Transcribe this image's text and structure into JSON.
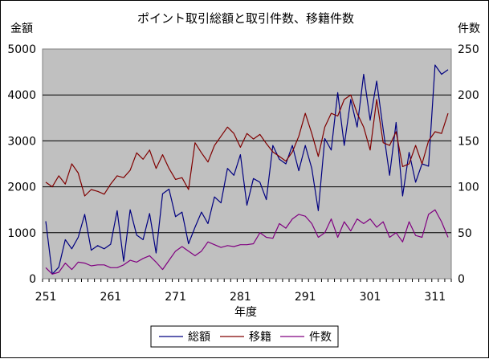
{
  "chart_data": {
    "type": "line",
    "title": "ポイント取引総額と取引件数、移籍件数",
    "xlabel": "年度",
    "ylabel_left": "金額",
    "ylabel_right": "件数",
    "x_start": 251,
    "x_end": 313,
    "x_ticks": [
      "251",
      "261",
      "271",
      "281",
      "291",
      "301",
      "311"
    ],
    "ylim_left": [
      0,
      5000
    ],
    "ylim_right": [
      0,
      250
    ],
    "yticks_left": [
      "0",
      "1000",
      "2000",
      "3000",
      "4000",
      "5000"
    ],
    "yticks_right": [
      "0",
      "50",
      "100",
      "150",
      "200",
      "250"
    ],
    "grid": true,
    "legend_position": "bottom",
    "series": [
      {
        "name": "総額",
        "axis": "left",
        "color": "#000080",
        "values": [
          1250,
          100,
          250,
          850,
          650,
          900,
          1400,
          620,
          720,
          650,
          750,
          1480,
          380,
          1500,
          950,
          850,
          1420,
          560,
          1850,
          1950,
          1350,
          1450,
          760,
          1120,
          1450,
          1200,
          1780,
          1650,
          2400,
          2250,
          2700,
          1600,
          2180,
          2100,
          1720,
          2900,
          2600,
          2500,
          2900,
          2350,
          2900,
          2400,
          1480,
          3050,
          2800,
          4050,
          2900,
          3900,
          3300,
          4450,
          3450,
          4300,
          3250,
          2250,
          3400,
          1800,
          2750,
          2100,
          2500,
          2450,
          4650,
          4450,
          4550
        ]
      },
      {
        "name": "移籍",
        "axis": "right",
        "color": "#800000",
        "values": [
          105,
          100,
          112,
          103,
          125,
          115,
          90,
          97,
          95,
          92,
          103,
          112,
          110,
          118,
          137,
          130,
          140,
          120,
          135,
          120,
          108,
          110,
          97,
          148,
          137,
          127,
          145,
          155,
          165,
          158,
          143,
          158,
          152,
          157,
          147,
          138,
          133,
          128,
          138,
          155,
          180,
          158,
          133,
          165,
          180,
          177,
          195,
          200,
          180,
          165,
          140,
          195,
          148,
          145,
          160,
          122,
          125,
          145,
          125,
          150,
          160,
          158,
          180
        ]
      },
      {
        "name": "件数",
        "axis": "right",
        "color": "#800080",
        "values": [
          12,
          5,
          7,
          17,
          10,
          18,
          17,
          14,
          15,
          15,
          12,
          12,
          15,
          20,
          18,
          22,
          25,
          18,
          10,
          20,
          30,
          35,
          30,
          25,
          30,
          40,
          37,
          34,
          36,
          35,
          37,
          37,
          38,
          50,
          45,
          44,
          60,
          55,
          65,
          70,
          68,
          60,
          45,
          50,
          65,
          45,
          62,
          52,
          65,
          60,
          65,
          56,
          62,
          45,
          50,
          40,
          62,
          47,
          45,
          70,
          75,
          62,
          45
        ]
      }
    ]
  }
}
